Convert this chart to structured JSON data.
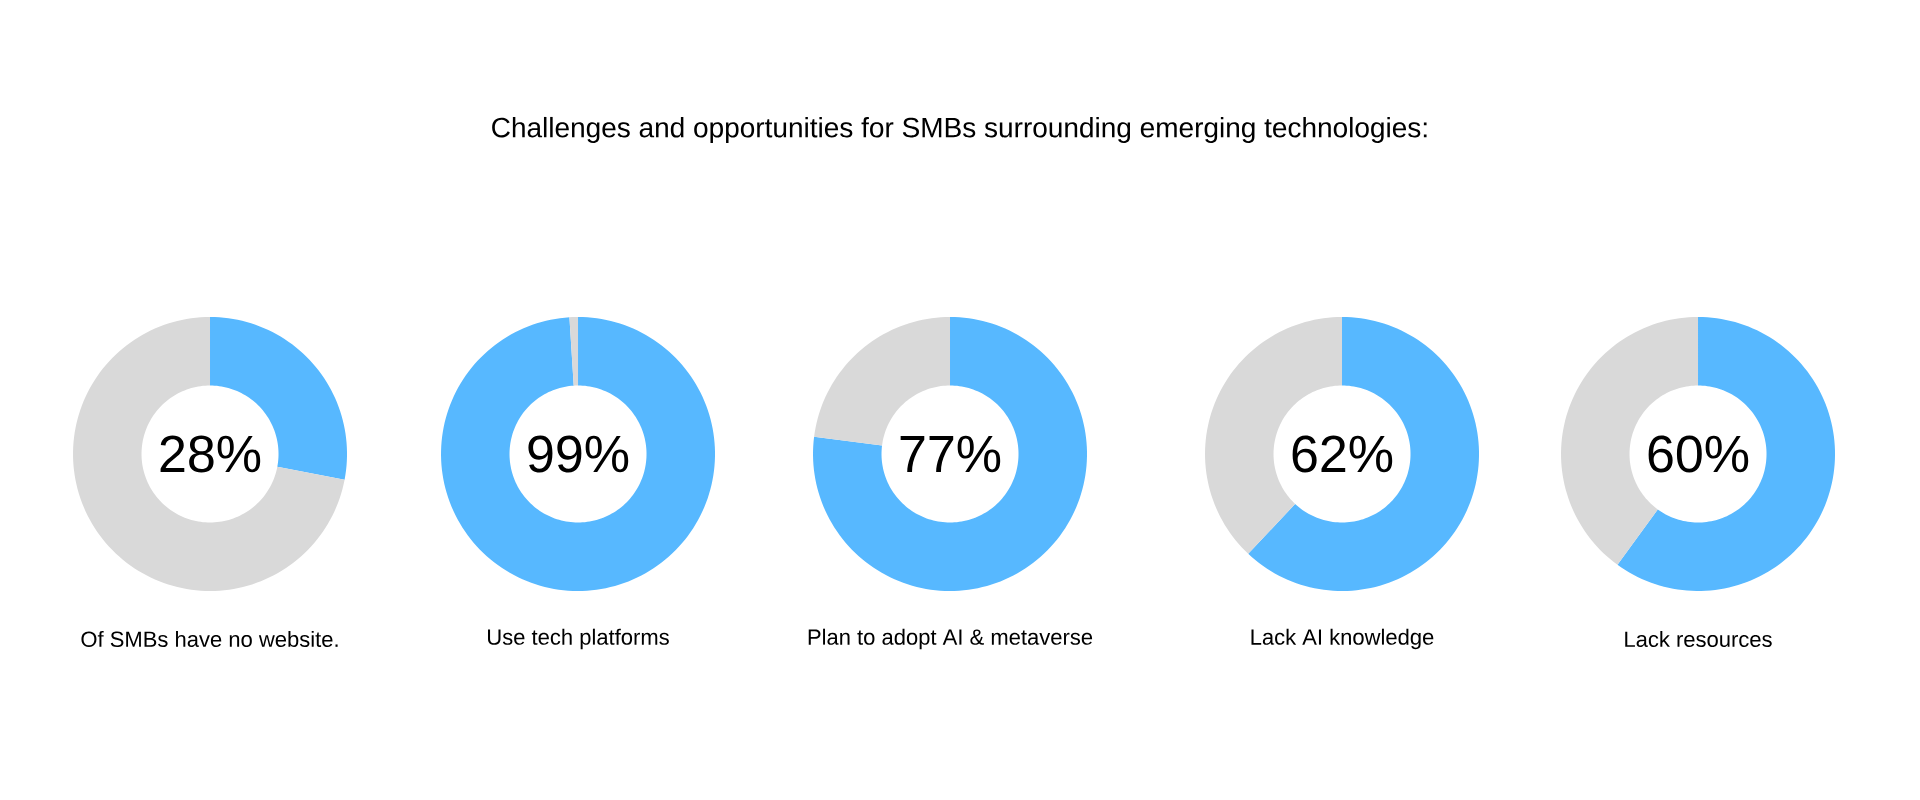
{
  "chart_data": [
    {
      "type": "donut",
      "xlabel": "Of SMBs have no website.",
      "categories": [
        null,
        null
      ],
      "values": [
        28,
        72
      ],
      "colors": [
        "#57b8ff",
        "#d9d9d9"
      ],
      "value_labels": [
        "28%",
        null
      ]
    },
    {
      "type": "donut",
      "xlabel": "Use tech platforms",
      "categories": [
        null,
        null
      ],
      "values": [
        99,
        1
      ],
      "colors": [
        "#57b8ff",
        "#d9d9d9"
      ],
      "value_labels": [
        "99%",
        null
      ]
    },
    {
      "type": "donut",
      "title": "Challenges and opportunities for SMBs surrounding emerging technologies:",
      "xlabel": "Plan to adopt AI & metaverse",
      "categories": [
        null,
        null
      ],
      "values": [
        77,
        23
      ],
      "colors": [
        "#57b8ff",
        "#d9d9d9"
      ],
      "value_labels": [
        "77%",
        null
      ]
    },
    {
      "type": "donut",
      "xlabel": "Lack AI knowledge",
      "categories": [
        null,
        null
      ],
      "values": [
        62,
        38
      ],
      "colors": [
        "#57b8ff",
        "#d9d9d9"
      ],
      "value_labels": [
        "62%",
        null
      ]
    },
    {
      "type": "donut",
      "xlabel": "Lack resources",
      "categories": [
        null,
        null
      ],
      "values": [
        60,
        40
      ],
      "colors": [
        "#57b8ff",
        "#d9d9d9"
      ],
      "value_labels": [
        "60%",
        null
      ]
    }
  ]
}
